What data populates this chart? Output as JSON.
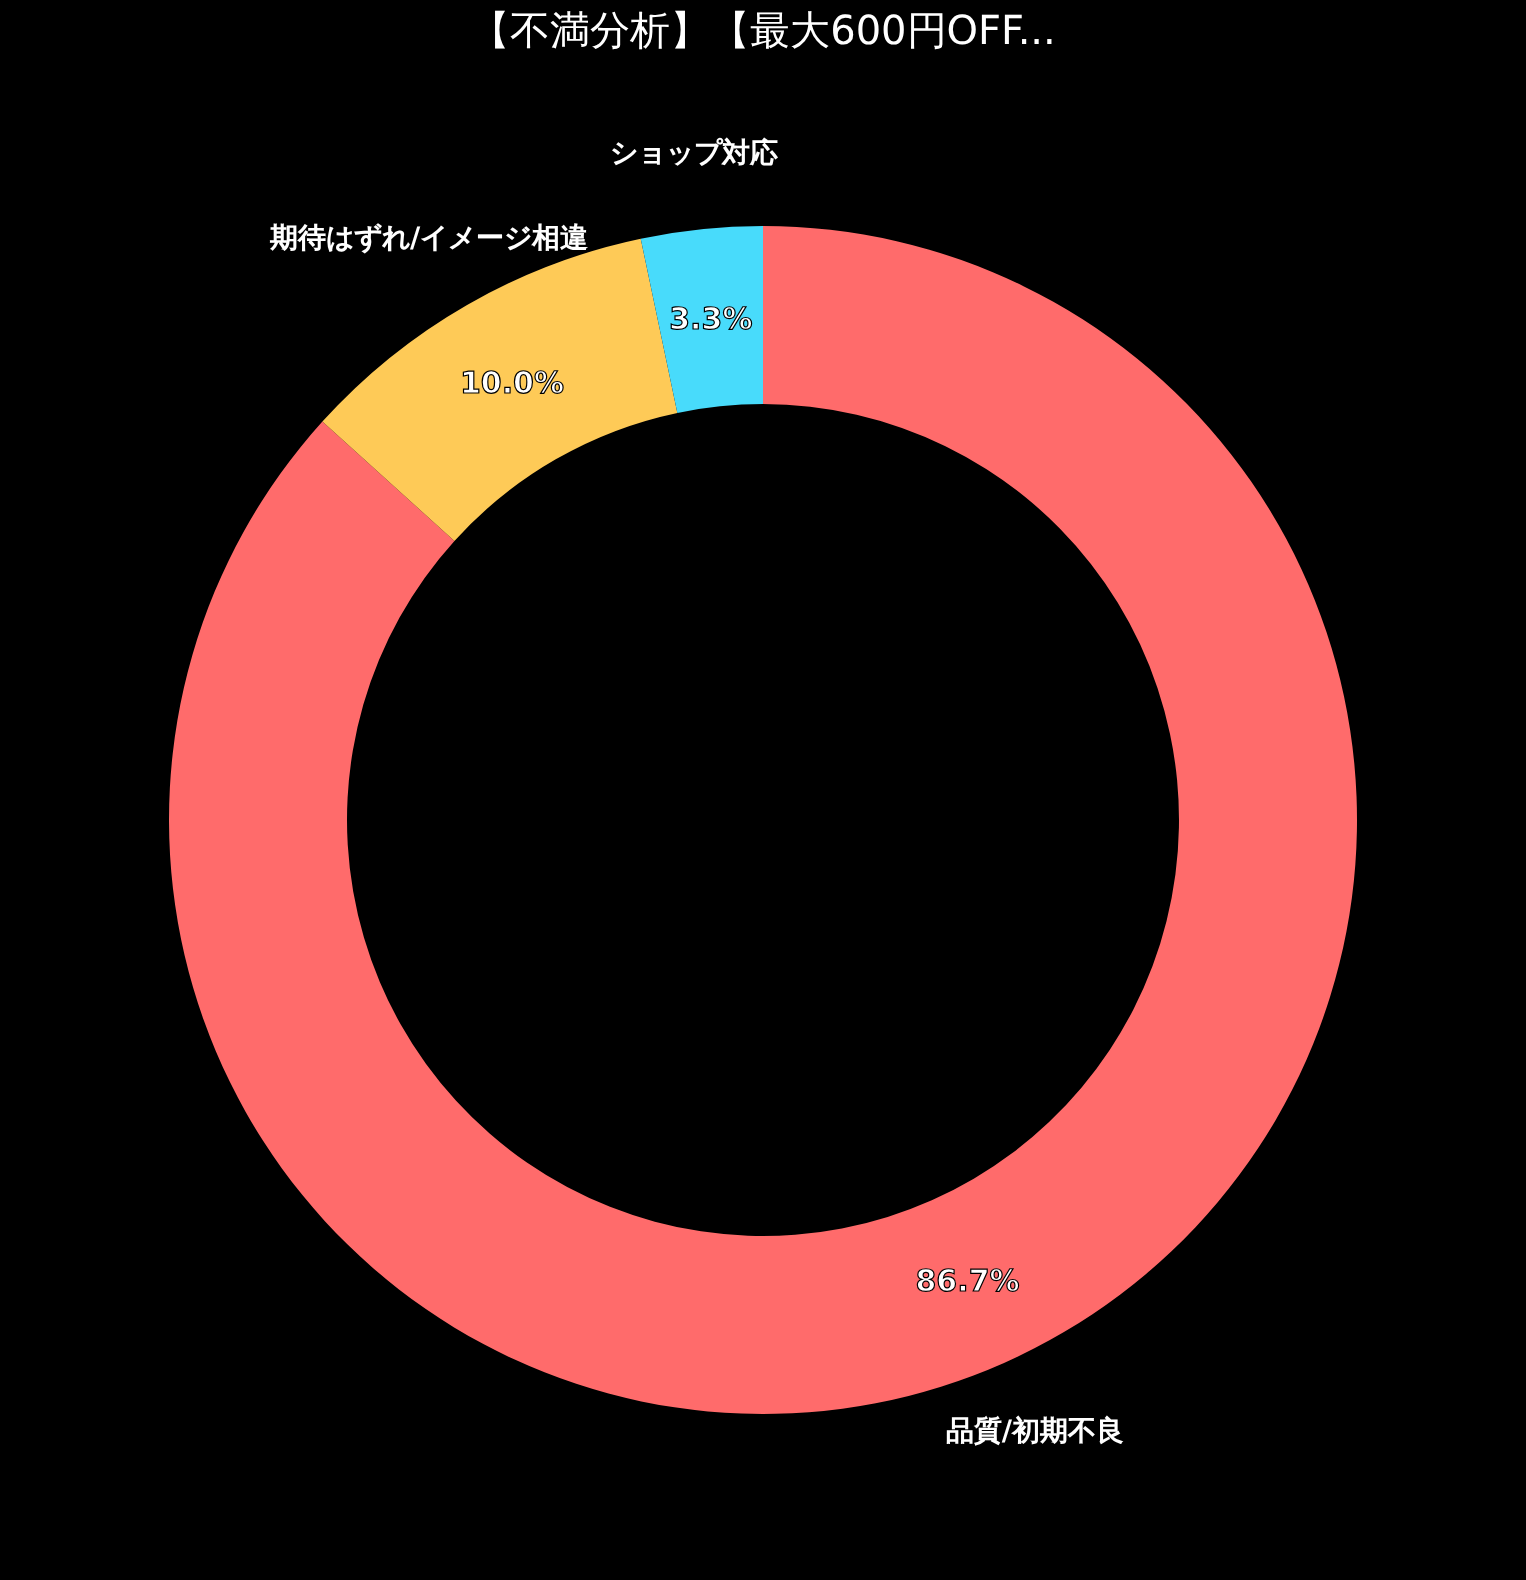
{
  "chart_data": {
    "type": "donut",
    "title": "【不満分析】【最大600円OFF...",
    "categories": [
      "品質/初期不良",
      "期待はずれ/イメージ相違",
      "ショップ対応"
    ],
    "values": [
      86.7,
      10.0,
      3.3
    ],
    "colors": [
      "#ff6b6b",
      "#feca57",
      "#48dbfb"
    ],
    "value_labels": [
      "86.7%",
      "10.0%",
      "3.3%"
    ],
    "legend": false
  }
}
